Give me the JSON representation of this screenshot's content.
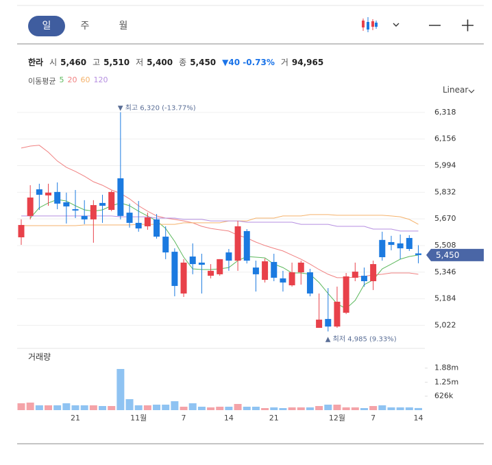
{
  "tabs": [
    "일",
    "주",
    "월"
  ],
  "quote": {
    "name": "한라",
    "fields": [
      {
        "label": "시",
        "value": "5,460"
      },
      {
        "label": "고",
        "value": "5,510"
      },
      {
        "label": "저",
        "value": "5,400"
      },
      {
        "label": "종",
        "value": "5,450"
      }
    ],
    "change": "▼40 -0.73%",
    "volume": {
      "label": "거",
      "value": "94,965"
    }
  },
  "scale_mode": "Linear",
  "chart_data": [
    {
      "type": "candlestick",
      "ma_label": "이동평균",
      "categories": [
        null,
        null,
        null,
        null,
        null,
        null,
        "21",
        null,
        null,
        null,
        null,
        null,
        null,
        "11월",
        null,
        null,
        null,
        null,
        "7",
        null,
        null,
        null,
        null,
        "14",
        null,
        null,
        null,
        null,
        "21",
        null,
        null,
        null,
        null,
        null,
        null,
        "12월",
        null,
        null,
        null,
        "7",
        null,
        null,
        null,
        null,
        "14"
      ],
      "open": [
        5558,
        5688,
        5850,
        5813,
        5834,
        5771,
        5729,
        5688,
        5667,
        5767,
        5725,
        5917,
        5708,
        5646,
        5625,
        5667,
        5562,
        5470,
        5216,
        5441,
        5404,
        5324,
        5333,
        5466,
        5416,
        5596,
        5374,
        5299,
        5408,
        5308,
        5266,
        5345,
        5345,
        5007,
        5061,
        5015,
        5099,
        5312,
        5324,
        5291,
        5542,
        5529,
        5521,
        5554,
        5460
      ],
      "high": [
        5667,
        5875,
        5884,
        5884,
        5892,
        5830,
        5846,
        5784,
        5784,
        5817,
        5842,
        6320,
        5763,
        5779,
        5708,
        5700,
        5625,
        5491,
        5425,
        5521,
        5458,
        5395,
        5425,
        5487,
        5658,
        5608,
        5416,
        5429,
        5458,
        5354,
        5404,
        5416,
        5366,
        5216,
        5249,
        5258,
        5341,
        5404,
        5374,
        5416,
        5592,
        5567,
        5575,
        5571,
        5510
      ],
      "low": [
        5512,
        5667,
        5725,
        5750,
        5729,
        5642,
        5675,
        5638,
        5525,
        5646,
        5717,
        5667,
        5617,
        5592,
        5604,
        5550,
        5425,
        5199,
        5195,
        5333,
        5216,
        5308,
        5324,
        5354,
        5354,
        5399,
        5228,
        5283,
        5291,
        5228,
        5258,
        5270,
        5199,
        5007,
        4985,
        5007,
        5091,
        5291,
        5258,
        5237,
        5416,
        5479,
        5425,
        5475,
        5400
      ],
      "close": [
        5633,
        5800,
        5817,
        5830,
        5763,
        5746,
        5721,
        5667,
        5754,
        5750,
        5834,
        5688,
        5646,
        5612,
        5679,
        5562,
        5466,
        5262,
        5404,
        5395,
        5391,
        5354,
        5425,
        5416,
        5625,
        5416,
        5333,
        5412,
        5312,
        5283,
        5345,
        5404,
        5216,
        5057,
        5015,
        5166,
        5320,
        5349,
        5291,
        5395,
        5437,
        5512,
        5491,
        5487,
        5450
      ],
      "up_color": "#e8414a",
      "down_color": "#1b7ae0",
      "moving_averages": [
        {
          "name": "5",
          "color": "#5cb85c",
          "values": [
            null,
            5675,
            5738,
            5767,
            5788,
            5779,
            5750,
            5725,
            5717,
            5725,
            5750,
            5767,
            5750,
            5717,
            5688,
            5658,
            5612,
            5533,
            5437,
            5366,
            5362,
            5362,
            5366,
            5374,
            5416,
            5441,
            5437,
            5433,
            5395,
            5374,
            5341,
            5341,
            5333,
            5283,
            5216,
            5153,
            5124,
            5174,
            5270,
            5299,
            5366,
            5395,
            5425,
            5441,
            5450
          ]
        },
        {
          "name": "20",
          "color": "#f08080",
          "values": [
            6101,
            6113,
            6118,
            6076,
            6022,
            5984,
            5959,
            5930,
            5896,
            5875,
            5846,
            5825,
            5792,
            5750,
            5717,
            5688,
            5675,
            5667,
            5658,
            5646,
            5625,
            5612,
            5604,
            5596,
            5571,
            5554,
            5529,
            5508,
            5491,
            5475,
            5450,
            5425,
            5395,
            5362,
            5333,
            5312,
            5312,
            5316,
            5320,
            5329,
            5333,
            5341,
            5341,
            5341,
            5333
          ]
        },
        {
          "name": "60",
          "color": "#f5b26b",
          "values": [
            5629,
            5629,
            5629,
            5629,
            5629,
            5629,
            5629,
            5633,
            5633,
            5633,
            5633,
            5633,
            5633,
            5637,
            5637,
            5637,
            5637,
            5637,
            5646,
            5646,
            5646,
            5646,
            5646,
            5658,
            5658,
            5658,
            5675,
            5675,
            5675,
            5688,
            5688,
            5688,
            5696,
            5696,
            5696,
            5692,
            5692,
            5692,
            5692,
            5692,
            5692,
            5688,
            5683,
            5667,
            5637
          ]
        },
        {
          "name": "120",
          "color": "#b58ee0",
          "values": [
            5688,
            5688,
            5688,
            5688,
            5688,
            5688,
            5688,
            5688,
            5688,
            5688,
            5688,
            5683,
            5683,
            5683,
            5683,
            5675,
            5675,
            5675,
            5667,
            5667,
            5667,
            5658,
            5658,
            5658,
            5658,
            5650,
            5650,
            5650,
            5650,
            5650,
            5650,
            5637,
            5637,
            5637,
            5637,
            5625,
            5625,
            5625,
            5625,
            5608,
            5608,
            5608,
            5596,
            5596,
            5596
          ]
        }
      ],
      "ylim": [
        4957,
        6397
      ],
      "yticks": [
        {
          "value": 6318,
          "label": "6,318"
        },
        {
          "value": 6156,
          "label": "6,156"
        },
        {
          "value": 5994,
          "label": "5,994"
        },
        {
          "value": 5832,
          "label": "5,832"
        },
        {
          "value": 5670,
          "label": "5,670"
        },
        {
          "value": 5508,
          "label": "5,508"
        },
        {
          "value": 5346,
          "label": "5,346"
        },
        {
          "value": 5184,
          "label": "5,184"
        },
        {
          "value": 5022,
          "label": "5,022"
        }
      ],
      "grid": true,
      "annotations": {
        "high": "▼ 최고 6,320 (-13.77%)",
        "low": "▲ 최저 4,985 (9.33%)"
      }
    },
    {
      "type": "bar",
      "title": "거래량",
      "values": [
        307000,
        337000,
        215000,
        215000,
        215000,
        307000,
        215000,
        215000,
        215000,
        184000,
        184000,
        1841000,
        491000,
        215000,
        215000,
        245000,
        245000,
        399000,
        153000,
        307000,
        153000,
        123000,
        153000,
        153000,
        276000,
        153000,
        153000,
        92000,
        123000,
        92000,
        123000,
        123000,
        123000,
        184000,
        245000,
        245000,
        123000,
        123000,
        92000,
        184000,
        215000,
        123000,
        123000,
        123000,
        94965
      ],
      "up_color": "#f4a3a8",
      "down_color": "#8fc3f2",
      "ylim": [
        0,
        2700000
      ],
      "yticks": [
        {
          "value": 626000,
          "label": "626k"
        },
        {
          "value": 1250000,
          "label": "1.25m"
        },
        {
          "value": 1880000,
          "label": "1.88m"
        }
      ]
    }
  ]
}
